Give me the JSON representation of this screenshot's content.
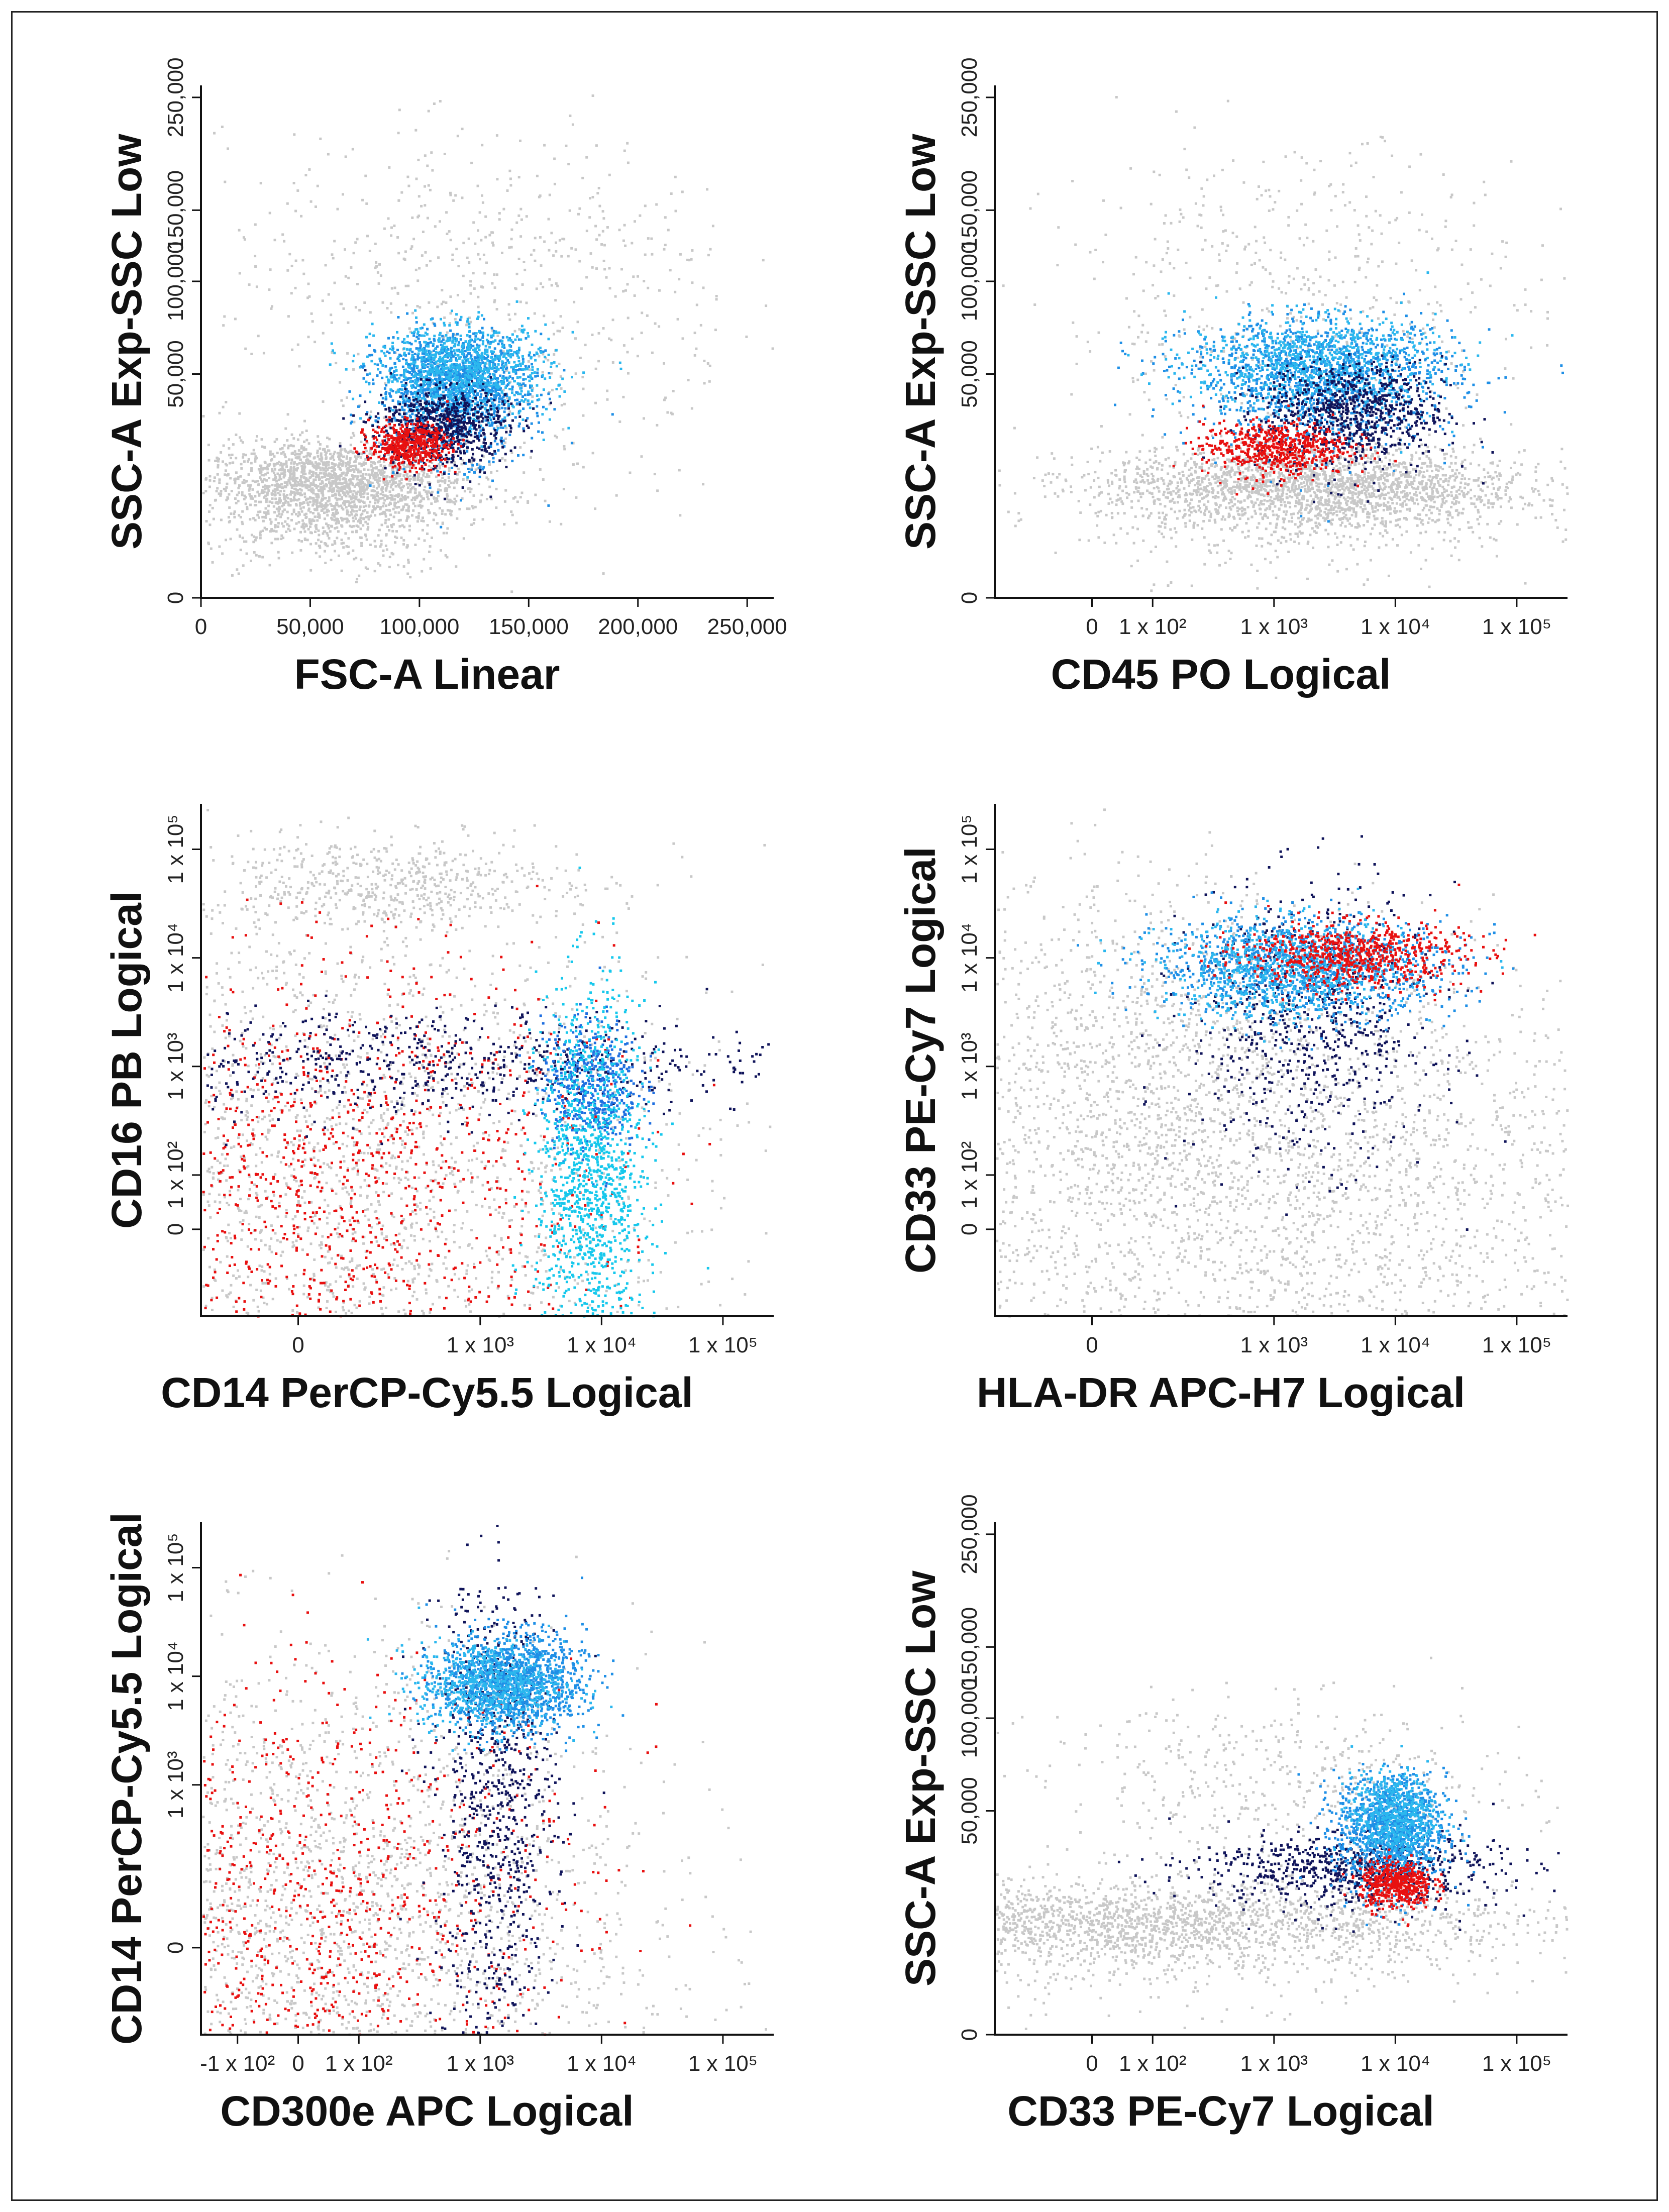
{
  "chart_data": [
    {
      "type": "scatter",
      "xlabel": "FSC-A Linear",
      "ylabel": "SSC-A Exp-SSC Low",
      "x_scale": "linear",
      "y_scale": "exp",
      "x_ticks": [
        "0",
        "50,000",
        "100,000",
        "150,000",
        "200,000",
        "250,000"
      ],
      "x_tick_values": [
        0,
        50000,
        100000,
        150000,
        200000,
        250000
      ],
      "y_ticks": [
        "0",
        "50,000",
        "100,000",
        "150,000",
        "250,000"
      ],
      "y_tick_values": [
        0,
        50000,
        100000,
        150000,
        250000
      ],
      "xlim": [
        0,
        262144
      ],
      "ylim": [
        0,
        262144
      ],
      "populations": [
        {
          "color": "#c8c8c8",
          "count": 2200,
          "cx": 60000,
          "cy": 12000,
          "sx": 30000,
          "sy": 6000
        },
        {
          "color": "#c8c8c8",
          "count": 700,
          "cx": 130000,
          "cy": 90000,
          "sx": 60000,
          "sy": 60000
        },
        {
          "color": "#1f8fe6",
          "count": 1400,
          "cx": 115000,
          "cy": 45000,
          "sx": 17000,
          "sy": 12000
        },
        {
          "color": "#2bb7ee",
          "count": 900,
          "cx": 120000,
          "cy": 52000,
          "sx": 20000,
          "sy": 11000
        },
        {
          "color": "#10145a",
          "count": 700,
          "cx": 110000,
          "cy": 30000,
          "sx": 15000,
          "sy": 7000
        },
        {
          "color": "#e81010",
          "count": 500,
          "cx": 95000,
          "cy": 24000,
          "sx": 9000,
          "sy": 3500
        }
      ]
    },
    {
      "type": "scatter",
      "xlabel": "CD45 PO Logical",
      "ylabel": "SSC-A Exp-SSC Low",
      "x_scale": "logical",
      "y_scale": "exp",
      "x_ticks": [
        "0",
        "1 x 10²",
        "1 x 10³",
        "1 x 10⁴",
        "1 x 10⁵"
      ],
      "x_tick_values": [
        0,
        100,
        1000,
        10000,
        100000
      ],
      "y_ticks": [
        "0",
        "50,000",
        "100,000",
        "150,000",
        "250,000"
      ],
      "y_tick_values": [
        0,
        50000,
        100000,
        150000,
        250000
      ],
      "xlim": [
        -200,
        262144
      ],
      "ylim": [
        0,
        262144
      ],
      "populations": [
        {
          "color": "#c8c8c8",
          "count": 2400,
          "cx": 2000,
          "cy": 12000,
          "sx": 0.35,
          "sy": 5000
        },
        {
          "color": "#c8c8c8",
          "count": 600,
          "cx": 1500,
          "cy": 80000,
          "sx": 0.4,
          "sy": 60000
        },
        {
          "color": "#1f8fe6",
          "count": 1300,
          "cx": 2500,
          "cy": 50000,
          "sx": 0.22,
          "sy": 13000
        },
        {
          "color": "#2bb7ee",
          "count": 800,
          "cx": 2000,
          "cy": 55000,
          "sx": 0.2,
          "sy": 12000
        },
        {
          "color": "#10145a",
          "count": 800,
          "cx": 4500,
          "cy": 35000,
          "sx": 0.15,
          "sy": 10000
        },
        {
          "color": "#e81010",
          "count": 600,
          "cx": 1000,
          "cy": 23000,
          "sx": 0.12,
          "sy": 4000
        }
      ]
    },
    {
      "type": "scatter",
      "xlabel": "CD14 PerCP-Cy5.5 Logical",
      "ylabel": "CD16 PB Logical",
      "x_scale": "logical",
      "y_scale": "logical",
      "x_ticks": [
        "0",
        "1 x 10³",
        "1 x 10⁴",
        "1 x 10⁵"
      ],
      "x_tick_values": [
        0,
        1000,
        10000,
        100000
      ],
      "y_ticks": [
        "0",
        "1 x 10²",
        "1 x 10³",
        "1 x 10⁴",
        "1 x 10⁵"
      ],
      "y_tick_values": [
        0,
        100,
        1000,
        10000,
        100000
      ],
      "xlim": [
        -200,
        262144
      ],
      "ylim": [
        -200,
        262144
      ],
      "populations": [
        {
          "color": "#c8c8c8",
          "count": 2600,
          "cx": 60,
          "cy": 80,
          "sx": 0.6,
          "sy": 0.6
        },
        {
          "color": "#c8c8c8",
          "count": 500,
          "cx": 150,
          "cy": 50000,
          "sx": 0.3,
          "sy": 0.08
        },
        {
          "color": "#e81010",
          "count": 1200,
          "cx": 60,
          "cy": 90,
          "sx": 0.45,
          "sy": 0.4
        },
        {
          "color": "#10145a",
          "count": 700,
          "cx": 300,
          "cy": 1100,
          "sx": 0.6,
          "sy": 0.1
        },
        {
          "color": "#1f6fe0",
          "count": 500,
          "cx": 8000,
          "cy": 700,
          "sx": 0.08,
          "sy": 0.12
        },
        {
          "color": "#17c8ec",
          "count": 1300,
          "cx": 8000,
          "cy": 90,
          "sx": 0.09,
          "sy": 0.35
        }
      ]
    },
    {
      "type": "scatter",
      "xlabel": "HLA-DR APC-H7 Logical",
      "ylabel": "CD33 PE-Cy7 Logical",
      "x_scale": "logical",
      "y_scale": "logical",
      "x_ticks": [
        "0",
        "1 x 10³",
        "1 x 10⁴",
        "1 x 10⁵"
      ],
      "x_tick_values": [
        0,
        1000,
        10000,
        100000
      ],
      "y_ticks": [
        "0",
        "1 x 10²",
        "1 x 10³",
        "1 x 10⁴",
        "1 x 10⁵"
      ],
      "y_tick_values": [
        0,
        100,
        1000,
        10000,
        100000
      ],
      "xlim": [
        -200,
        262144
      ],
      "ylim": [
        -200,
        262144
      ],
      "populations": [
        {
          "color": "#c8c8c8",
          "count": 3200,
          "cx": 1000,
          "cy": 60,
          "sx": 0.8,
          "sy": 0.45
        },
        {
          "color": "#c8c8c8",
          "count": 900,
          "cx": 80,
          "cy": 1200,
          "sx": 0.35,
          "sy": 0.35
        },
        {
          "color": "#10145a",
          "count": 700,
          "cx": 2000,
          "cy": 2500,
          "sx": 0.2,
          "sy": 0.25
        },
        {
          "color": "#1f8fe6",
          "count": 1100,
          "cx": 1800,
          "cy": 8500,
          "sx": 0.25,
          "sy": 0.09
        },
        {
          "color": "#2bb7ee",
          "count": 700,
          "cx": 1200,
          "cy": 8000,
          "sx": 0.2,
          "sy": 0.09
        },
        {
          "color": "#e81010",
          "count": 700,
          "cx": 4500,
          "cy": 11000,
          "sx": 0.18,
          "sy": 0.06
        }
      ]
    },
    {
      "type": "scatter",
      "xlabel": "CD300e APC Logical",
      "ylabel": "CD14 PerCP-Cy5.5 Logical",
      "x_scale": "logical",
      "y_scale": "logical",
      "x_ticks": [
        "-1 x 10²",
        "0",
        "1 x 10²",
        "1 x 10³",
        "1 x 10⁴",
        "1 x 10⁵"
      ],
      "x_tick_values": [
        -100,
        0,
        100,
        1000,
        10000,
        100000
      ],
      "y_ticks": [
        "0",
        "1 x 10³",
        "1 x 10⁴",
        "1 x 10⁵"
      ],
      "y_tick_values": [
        0,
        1000,
        10000,
        100000
      ],
      "xlim": [
        -200,
        262144
      ],
      "ylim": [
        -200,
        262144
      ],
      "populations": [
        {
          "color": "#c8c8c8",
          "count": 2800,
          "cx": 20,
          "cy": 40,
          "sx": 0.55,
          "sy": 0.5
        },
        {
          "color": "#e81010",
          "count": 1100,
          "cx": 30,
          "cy": 60,
          "sx": 0.45,
          "sy": 0.45
        },
        {
          "color": "#10145a",
          "count": 800,
          "cx": 1300,
          "cy": 700,
          "sx": 0.1,
          "sy": 0.45
        },
        {
          "color": "#1f8fe6",
          "count": 1200,
          "cx": 1800,
          "cy": 9000,
          "sx": 0.12,
          "sy": 0.09
        },
        {
          "color": "#2bb7ee",
          "count": 700,
          "cx": 1200,
          "cy": 8500,
          "sx": 0.12,
          "sy": 0.08
        }
      ]
    },
    {
      "type": "scatter",
      "xlabel": "CD33 PE-Cy7 Logical",
      "ylabel": "SSC-A Exp-SSC Low",
      "x_scale": "logical",
      "y_scale": "exp",
      "x_ticks": [
        "0",
        "1 x 10²",
        "1 x 10³",
        "1 x 10⁴",
        "1 x 10⁵"
      ],
      "x_tick_values": [
        0,
        100,
        1000,
        10000,
        100000
      ],
      "y_ticks": [
        "0",
        "50,000",
        "100,000",
        "150,000",
        "250,000"
      ],
      "y_tick_values": [
        0,
        50000,
        100000,
        150000,
        250000
      ],
      "xlim": [
        -200,
        262144
      ],
      "ylim": [
        0,
        262144
      ],
      "populations": [
        {
          "color": "#c8c8c8",
          "count": 2600,
          "cx": 40,
          "cy": 12000,
          "sx": 0.7,
          "sy": 5000
        },
        {
          "color": "#c8c8c8",
          "count": 500,
          "cx": 1200,
          "cy": 60000,
          "sx": 0.4,
          "sy": 25000
        },
        {
          "color": "#10145a",
          "count": 700,
          "cx": 4000,
          "cy": 28000,
          "sx": 0.25,
          "sy": 6000
        },
        {
          "color": "#1f8fe6",
          "count": 1100,
          "cx": 9000,
          "cy": 43000,
          "sx": 0.09,
          "sy": 12000
        },
        {
          "color": "#2bb7ee",
          "count": 600,
          "cx": 9500,
          "cy": 48000,
          "sx": 0.07,
          "sy": 10000
        },
        {
          "color": "#e81010",
          "count": 500,
          "cx": 10000,
          "cy": 23000,
          "sx": 0.06,
          "sy": 3500
        }
      ]
    }
  ]
}
